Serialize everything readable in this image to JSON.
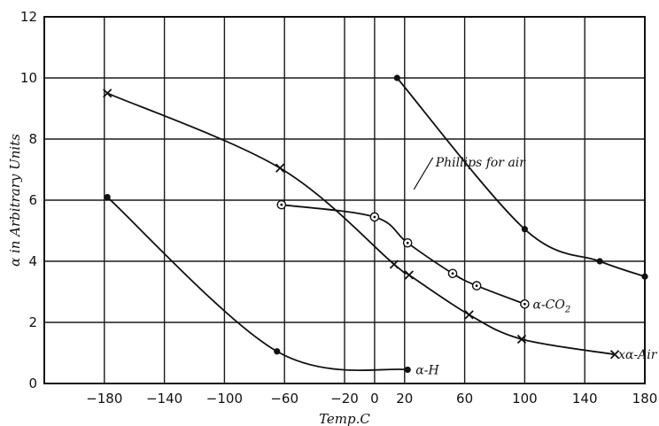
{
  "chart_data": {
    "type": "line",
    "xlabel": "Temp.C",
    "ylabel": "α in Arbitrary Units",
    "xlim": [
      -220,
      180
    ],
    "ylim": [
      0,
      12
    ],
    "xticks": [
      -180,
      -140,
      -100,
      -60,
      -20,
      0,
      20,
      60,
      100,
      140,
      180
    ],
    "yticks": [
      0,
      2,
      4,
      6,
      8,
      10,
      12
    ],
    "grid": true,
    "series": [
      {
        "name": "Phillips for air",
        "marker": "dot",
        "x": [
          15,
          100,
          150,
          180
        ],
        "y": [
          10.0,
          5.05,
          4.0,
          3.5
        ]
      },
      {
        "name": "α-CO2",
        "marker": "circle",
        "x": [
          -62,
          0,
          22,
          52,
          68,
          100
        ],
        "y": [
          5.85,
          5.45,
          4.6,
          3.6,
          3.2,
          2.6
        ]
      },
      {
        "name": "α-Air",
        "marker": "cross",
        "x": [
          -178,
          -63,
          13,
          23,
          63,
          98,
          160
        ],
        "y": [
          9.5,
          7.05,
          3.9,
          3.55,
          2.25,
          1.45,
          0.95
        ]
      },
      {
        "name": "α-H",
        "marker": "dot",
        "x": [
          -178,
          -65,
          22
        ],
        "y": [
          6.1,
          1.05,
          0.45
        ]
      }
    ],
    "annotations": [
      {
        "text": "Phillips for air",
        "x": 30,
        "y": 7.1
      },
      {
        "text": "α-CO",
        "sub": "2",
        "x": 103,
        "y": 2.6
      },
      {
        "text": "xα-Air",
        "x": 160,
        "y": 0.95
      },
      {
        "text": "α-H",
        "x": 25,
        "y": 0.45
      }
    ]
  }
}
